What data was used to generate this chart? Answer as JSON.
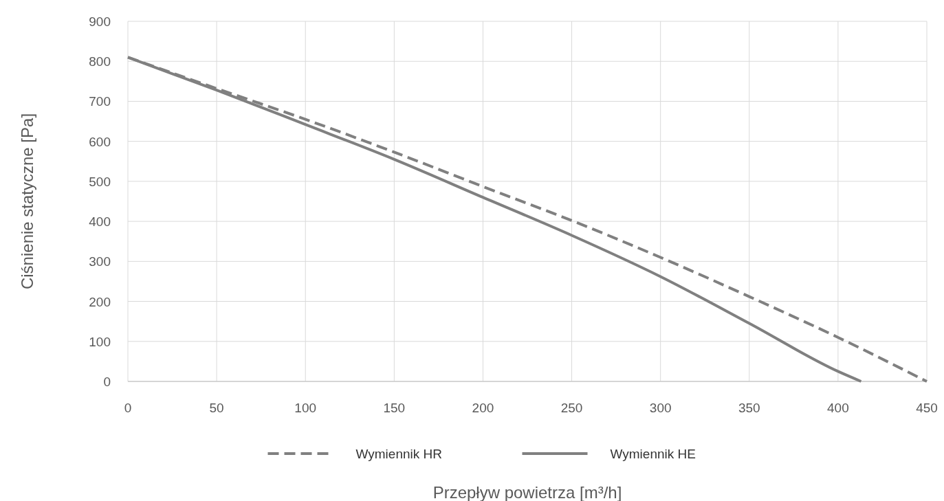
{
  "chart_data": {
    "type": "line",
    "xlabel": "Przepływ powietrza [m³/h]",
    "ylabel": "Ciśnienie statyczne [Pa]",
    "xlim": [
      0,
      450
    ],
    "xticks": [
      0,
      50,
      100,
      150,
      200,
      250,
      300,
      350,
      400,
      450
    ],
    "ylim": [
      0,
      900
    ],
    "yticks": [
      0,
      100,
      200,
      300,
      400,
      500,
      600,
      700,
      800,
      900
    ],
    "grid": true,
    "legend": "bottom",
    "series": [
      {
        "name": "Wymiennik HR",
        "color": "#808080",
        "line_style": "dashed",
        "x": [
          0,
          50,
          100,
          150,
          200,
          250,
          300,
          350,
          400,
          450
        ],
        "values": [
          810,
          732,
          655,
          573,
          487,
          402,
          310,
          212,
          110,
          0
        ]
      },
      {
        "name": "Wymiennik HE",
        "color": "#808080",
        "line_style": "solid",
        "x": [
          0,
          50,
          100,
          150,
          200,
          250,
          300,
          350,
          400,
          413
        ],
        "values": [
          810,
          728,
          642,
          555,
          460,
          365,
          262,
          145,
          25,
          0
        ]
      }
    ]
  }
}
